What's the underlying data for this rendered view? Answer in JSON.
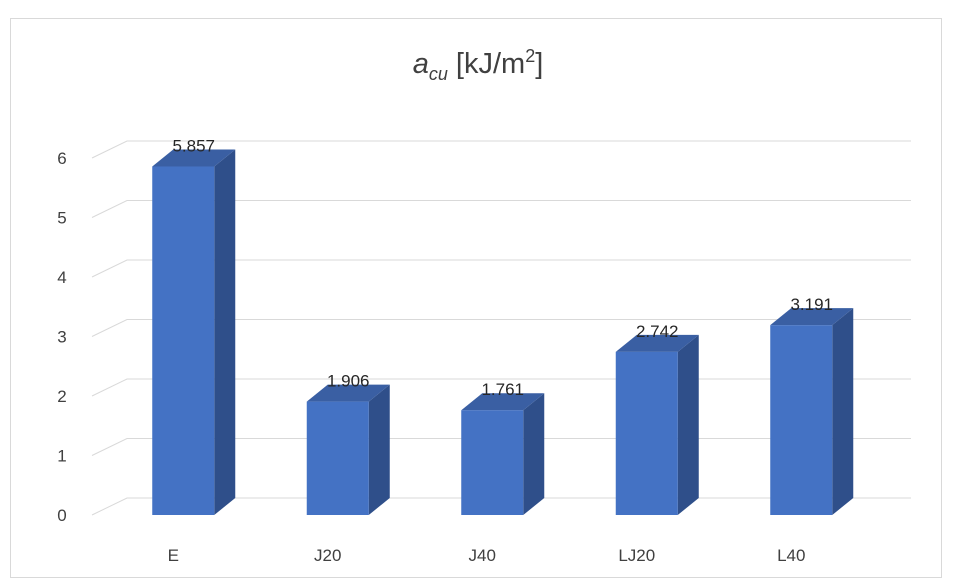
{
  "chart_data": {
    "type": "bar",
    "title": {
      "symbol": "a",
      "subscript": "cu",
      "unit_prefix": " [kJ/m",
      "unit_power": "2",
      "unit_suffix": "]"
    },
    "categories": [
      "E",
      "J20",
      "J40",
      "LJ20",
      "L40"
    ],
    "series": [
      {
        "values": [
          5.857,
          1.906,
          1.761,
          2.742,
          3.191
        ],
        "labels": [
          "5.857",
          "1.906",
          "1.761",
          "2.742",
          "3.191"
        ]
      }
    ],
    "ylim": [
      0,
      6
    ],
    "yticks": [
      0,
      1,
      2,
      3,
      4,
      5,
      6
    ],
    "xlabel": "",
    "ylabel": "",
    "grid": true,
    "legend": "none",
    "three_d": true,
    "colors": {
      "bar_front": "#4472c4",
      "bar_side": "#2f4f8a",
      "bar_top": "#3a5fa3",
      "grid": "#d9d9d9",
      "text": "#404040"
    }
  }
}
